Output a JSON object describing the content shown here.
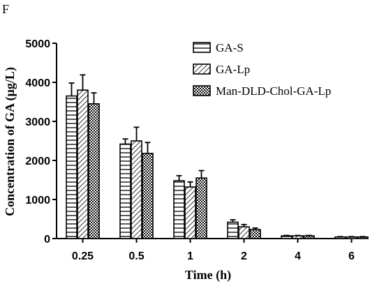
{
  "panel_label": "F",
  "chart_data": {
    "type": "bar",
    "title": "",
    "xlabel": "Time (h)",
    "ylabel": "Concentration of GA (μg/L)",
    "categories": [
      "0.25",
      "0.5",
      "1",
      "2",
      "4",
      "6"
    ],
    "ylim": [
      0,
      5000
    ],
    "yticks": [
      0,
      1000,
      2000,
      3000,
      4000,
      5000
    ],
    "grid": false,
    "legend_position": "top-right",
    "error_bars": true,
    "series": [
      {
        "name": "GA-S",
        "pattern": "horizontal-lines",
        "values": [
          3650,
          2420,
          1480,
          420,
          70,
          40
        ],
        "errors": [
          330,
          130,
          130,
          60,
          10,
          10
        ]
      },
      {
        "name": "GA-Lp",
        "pattern": "diagonal-lines",
        "values": [
          3800,
          2500,
          1320,
          300,
          70,
          40
        ],
        "errors": [
          390,
          350,
          130,
          60,
          10,
          10
        ]
      },
      {
        "name": "Man-DLD-Chol-GA-Lp",
        "pattern": "checkered",
        "values": [
          3450,
          2180,
          1550,
          230,
          70,
          40
        ],
        "errors": [
          280,
          280,
          190,
          40,
          10,
          10
        ]
      }
    ]
  }
}
